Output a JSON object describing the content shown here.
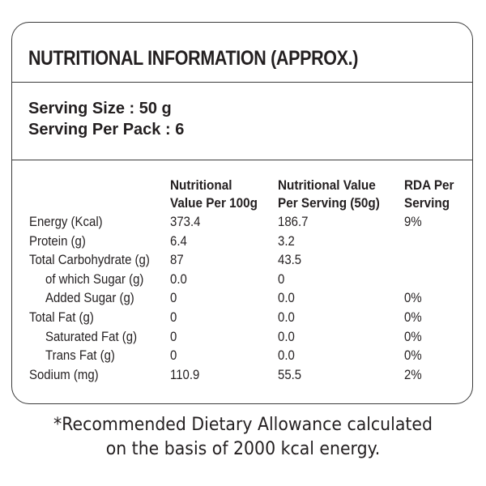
{
  "title": "NUTRITIONAL INFORMATION (APPROX.)",
  "serving": {
    "size": "Serving Size : 50 g",
    "per_pack": "Serving Per Pack : 6"
  },
  "table": {
    "headers": [
      [
        "Nutritional",
        "Value Per 100g"
      ],
      [
        "Nutritional Value",
        "Per Serving (50g)"
      ],
      [
        "RDA Per",
        "Serving"
      ]
    ],
    "rows": [
      {
        "name": "Energy (Kcal)",
        "indent": false,
        "per100g": "373.4",
        "per_serving": "186.7",
        "rda": "9%"
      },
      {
        "name": "Protein (g)",
        "indent": false,
        "per100g": "6.4",
        "per_serving": "3.2",
        "rda": ""
      },
      {
        "name": "Total Carbohydrate (g)",
        "indent": false,
        "per100g": "87",
        "per_serving": "43.5",
        "rda": ""
      },
      {
        "name": "of which Sugar (g)",
        "indent": true,
        "per100g": "0.0",
        "per_serving": "0",
        "rda": ""
      },
      {
        "name": "Added Sugar (g)",
        "indent": true,
        "per100g": "0",
        "per_serving": "0.0",
        "rda": "0%"
      },
      {
        "name": "Total Fat (g)",
        "indent": false,
        "per100g": "0",
        "per_serving": "0.0",
        "rda": "0%"
      },
      {
        "name": "Saturated Fat (g)",
        "indent": true,
        "per100g": "0",
        "per_serving": "0.0",
        "rda": "0%"
      },
      {
        "name": "Trans Fat (g)",
        "indent": true,
        "per100g": "0",
        "per_serving": "0.0",
        "rda": "0%"
      },
      {
        "name": "Sodium (mg)",
        "indent": false,
        "per100g": "110.9",
        "per_serving": "55.5",
        "rda": "2%"
      }
    ]
  },
  "footnote": [
    "*Recommended Dietary Allowance calculated",
    "on the basis of 2000 kcal energy."
  ]
}
